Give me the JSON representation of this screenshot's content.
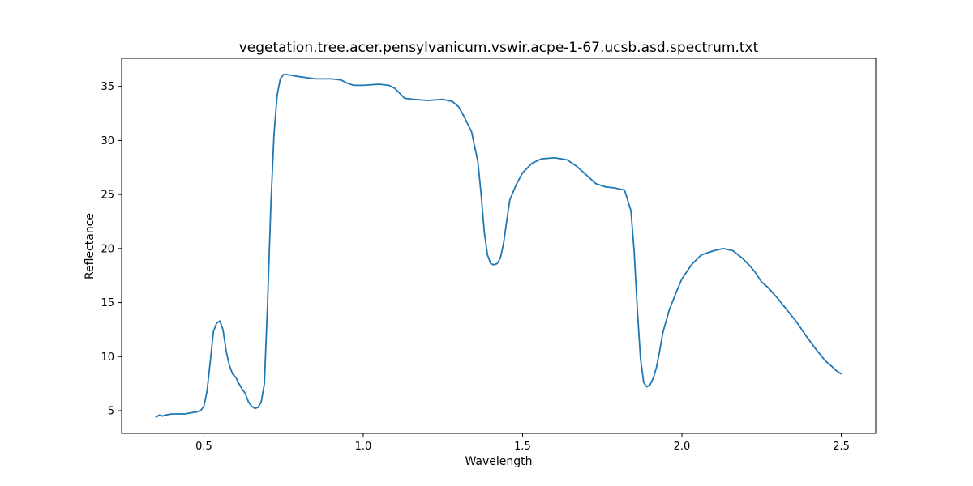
{
  "chart_data": {
    "type": "line",
    "title": "vegetation.tree.acer.pensylvanicum.vswir.acpe-1-67.ucsb.asd.spectrum.txt",
    "xlabel": "Wavelength",
    "ylabel": "Reflectance",
    "xlim": [
      0.242,
      2.608
    ],
    "ylim": [
      2.9,
      37.6
    ],
    "xticks": [
      0.5,
      1.0,
      1.5,
      2.0,
      2.5
    ],
    "xtick_labels": [
      "0.5",
      "1.0",
      "1.5",
      "2.0",
      "2.5"
    ],
    "yticks": [
      5,
      10,
      15,
      20,
      25,
      30,
      35
    ],
    "ytick_labels": [
      "5",
      "10",
      "15",
      "20",
      "25",
      "30",
      "35"
    ],
    "grid": false,
    "legend": "none",
    "series": [
      {
        "color": "#1f77b4",
        "x": [
          0.35,
          0.36,
          0.37,
          0.38,
          0.4,
          0.42,
          0.44,
          0.46,
          0.48,
          0.49,
          0.5,
          0.51,
          0.52,
          0.53,
          0.54,
          0.55,
          0.56,
          0.57,
          0.58,
          0.59,
          0.6,
          0.61,
          0.62,
          0.63,
          0.64,
          0.65,
          0.66,
          0.67,
          0.68,
          0.69,
          0.7,
          0.71,
          0.72,
          0.73,
          0.74,
          0.75,
          0.76,
          0.78,
          0.8,
          0.85,
          0.9,
          0.93,
          0.95,
          0.97,
          1.0,
          1.05,
          1.08,
          1.1,
          1.13,
          1.16,
          1.2,
          1.25,
          1.28,
          1.3,
          1.32,
          1.34,
          1.36,
          1.37,
          1.38,
          1.39,
          1.4,
          1.41,
          1.42,
          1.43,
          1.44,
          1.45,
          1.46,
          1.48,
          1.5,
          1.53,
          1.56,
          1.6,
          1.64,
          1.67,
          1.7,
          1.73,
          1.76,
          1.79,
          1.82,
          1.84,
          1.85,
          1.86,
          1.87,
          1.88,
          1.89,
          1.9,
          1.91,
          1.92,
          1.93,
          1.94,
          1.96,
          1.98,
          2.0,
          2.03,
          2.06,
          2.1,
          2.13,
          2.16,
          2.19,
          2.21,
          2.23,
          2.25,
          2.27,
          2.3,
          2.33,
          2.36,
          2.39,
          2.42,
          2.45,
          2.47,
          2.48,
          2.49,
          2.5
        ],
        "y": [
          4.4,
          4.6,
          4.5,
          4.6,
          4.7,
          4.7,
          4.7,
          4.8,
          4.9,
          5.0,
          5.4,
          6.8,
          9.5,
          12.3,
          13.1,
          13.3,
          12.5,
          10.5,
          9.2,
          8.4,
          8.1,
          7.5,
          7.0,
          6.6,
          5.8,
          5.4,
          5.2,
          5.3,
          5.8,
          7.5,
          15.0,
          23.8,
          30.5,
          34.2,
          35.7,
          36.1,
          36.1,
          36.0,
          35.9,
          35.7,
          35.7,
          35.6,
          35.3,
          35.1,
          35.1,
          35.2,
          35.1,
          34.8,
          33.9,
          33.8,
          33.7,
          33.8,
          33.6,
          33.1,
          32.0,
          30.8,
          28.0,
          25.0,
          21.5,
          19.4,
          18.6,
          18.5,
          18.6,
          19.1,
          20.4,
          22.5,
          24.5,
          25.9,
          27.0,
          27.9,
          28.3,
          28.4,
          28.2,
          27.6,
          26.8,
          26.0,
          25.7,
          25.6,
          25.4,
          23.5,
          19.8,
          14.4,
          9.8,
          7.6,
          7.2,
          7.4,
          8.0,
          9.0,
          10.5,
          12.2,
          14.3,
          15.8,
          17.2,
          18.5,
          19.4,
          19.8,
          20.0,
          19.8,
          19.1,
          18.5,
          17.8,
          16.9,
          16.4,
          15.4,
          14.3,
          13.2,
          11.9,
          10.7,
          9.6,
          9.1,
          8.8,
          8.6,
          8.4
        ]
      }
    ]
  }
}
